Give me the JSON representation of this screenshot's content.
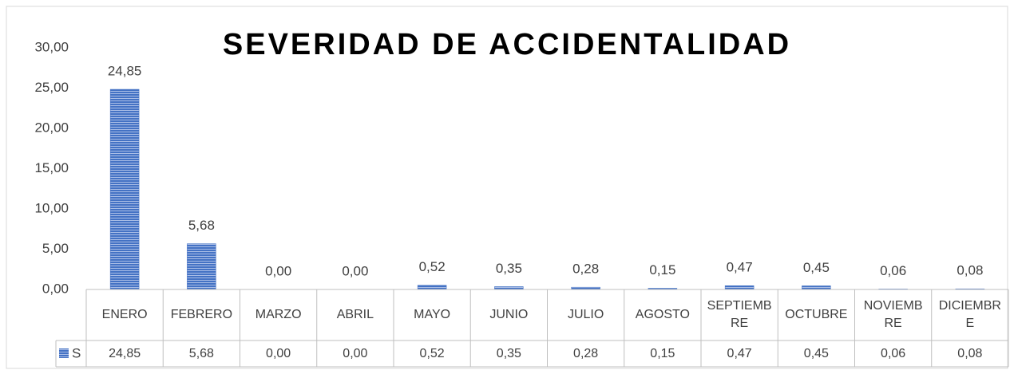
{
  "chart_data": {
    "type": "bar",
    "title": "SEVERIDAD DE ACCIDENTALIDAD",
    "categories": [
      "ENERO",
      "FEBRERO",
      "MARZO",
      "ABRIL",
      "MAYO",
      "JUNIO",
      "JULIO",
      "AGOSTO",
      "SEPTIEMBRE",
      "OCTUBRE",
      "NOVIEMBRE",
      "DICIEMBRE"
    ],
    "series": [
      {
        "name": "S",
        "color": "#4472c4",
        "values": [
          24.85,
          5.68,
          0,
          0,
          0.52,
          0.35,
          0.28,
          0.15,
          0.47,
          0.45,
          0.06,
          0.08
        ],
        "value_labels": [
          "24,85",
          "5,68",
          "0,00",
          "0,00",
          "0,52",
          "0,35",
          "0,28",
          "0,15",
          "0,47",
          "0,45",
          "0,06",
          "0,08"
        ]
      }
    ],
    "ylim": [
      0,
      30
    ],
    "yticks": [
      {
        "value": 0,
        "label": "0,00"
      },
      {
        "value": 5,
        "label": "5,00"
      },
      {
        "value": 10,
        "label": "10,00"
      },
      {
        "value": 15,
        "label": "15,00"
      },
      {
        "value": 20,
        "label": "20,00"
      },
      {
        "value": 25,
        "label": "25,00"
      },
      {
        "value": 30,
        "label": "30,00"
      }
    ],
    "grid": false,
    "data_table": true
  }
}
